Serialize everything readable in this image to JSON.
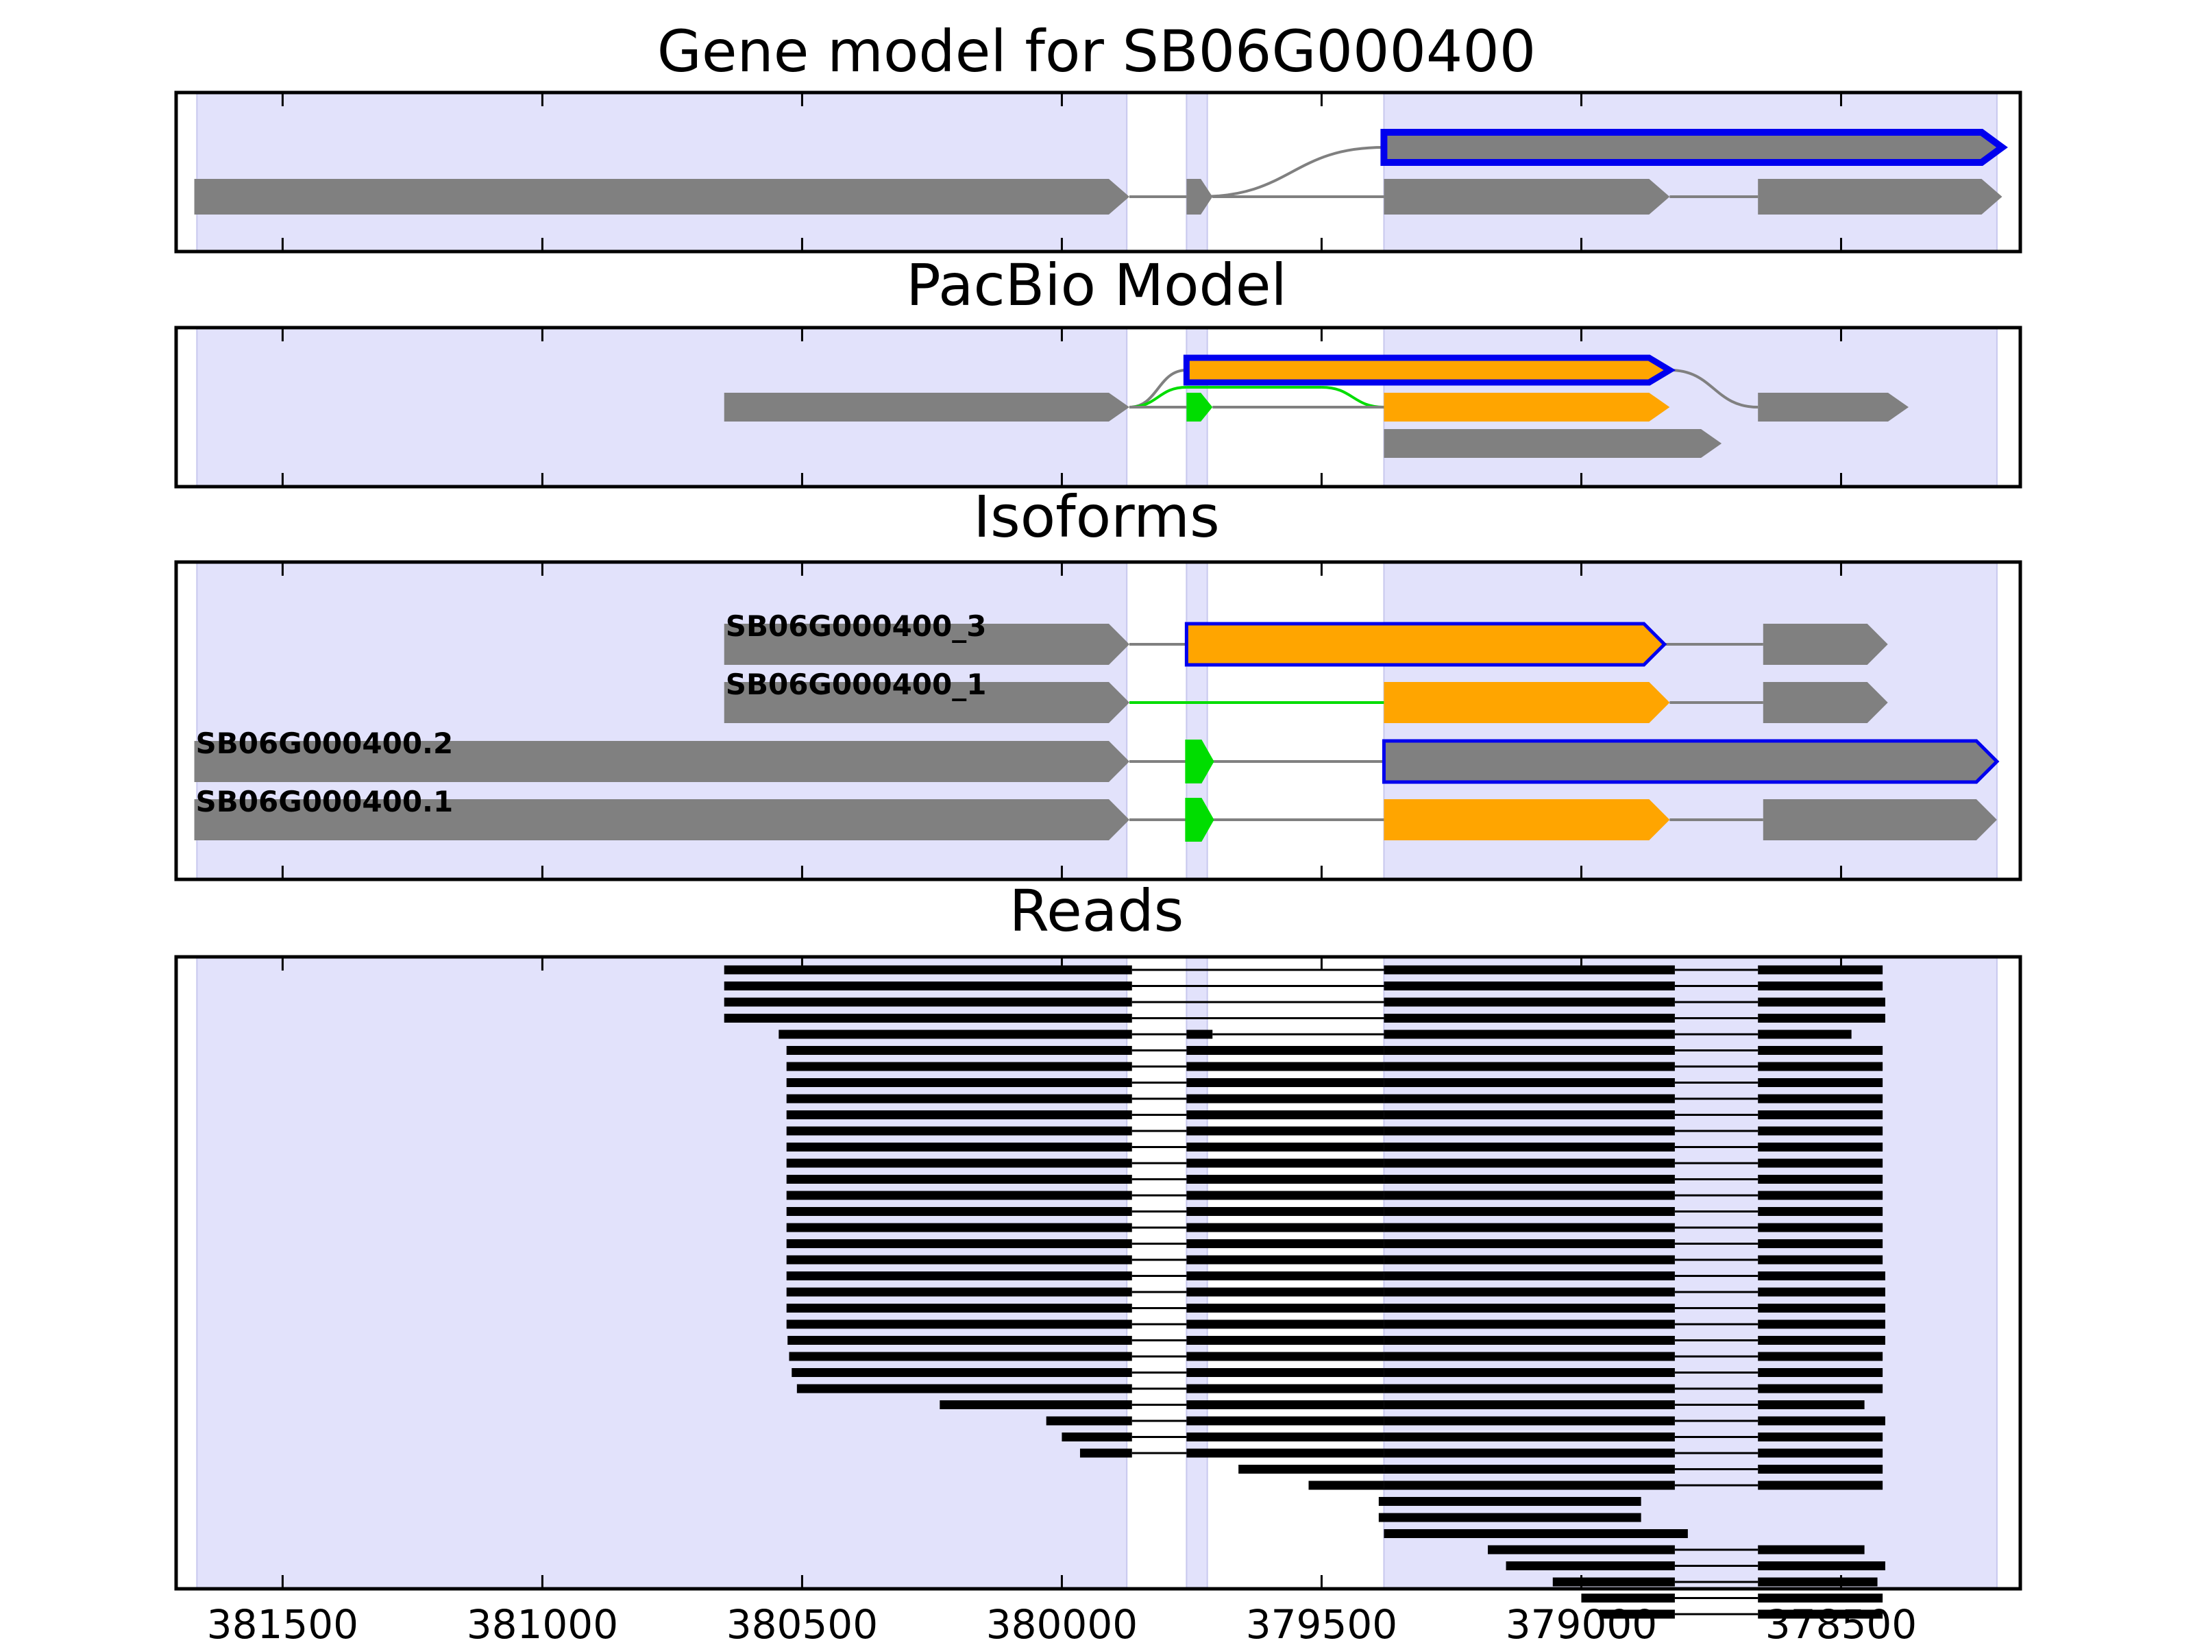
{
  "colors": {
    "background": "#ffffff",
    "exon_shade": "#e2e2fb",
    "exon_shade_edge": "#c8c8ee",
    "exon": "#808080",
    "alt_exon": "#ffa500",
    "novel_exon": "#00dd00",
    "highlight": "#0000ee",
    "intron": "#808080",
    "novel_intron": "#00dd00",
    "read": "#000000",
    "frame": "#000000"
  },
  "chart_data": {
    "type": "gene-model",
    "x_axis": {
      "range": [
        381705,
        378155
      ],
      "reversed": true,
      "ticks": [
        381500,
        381000,
        380500,
        380000,
        379500,
        379000,
        378500
      ],
      "tick_labels": [
        "381500",
        "381000",
        "380500",
        "380000",
        "379500",
        "379000",
        "378500"
      ]
    },
    "shaded_regions": [
      [
        381665,
        379875
      ],
      [
        379760,
        379720
      ],
      [
        379380,
        378200
      ]
    ],
    "panels": [
      {
        "id": "gene_model",
        "title": "Gene model for SB06G000400",
        "rows": 2,
        "tracks": [
          {
            "row": 0.5,
            "exons": [
              [
                379380,
                378190
              ]
            ],
            "color": "exon",
            "outline": "highlight",
            "outline_style": "thick",
            "introns_from_row": 1.5,
            "intron_link": [
              [
                379735,
                379380
              ]
            ]
          },
          {
            "row": 1.5,
            "exons": [
              [
                381670,
                379870
              ],
              [
                379760,
                379710
              ],
              [
                379380,
                378830
              ],
              [
                378660,
                378190
              ]
            ],
            "color": "exon",
            "introns": [
              [
                379870,
                379760
              ],
              [
                379710,
                379380
              ],
              [
                378830,
                378660
              ]
            ]
          }
        ]
      },
      {
        "id": "pacbio_model",
        "title": "PacBio Model",
        "rows": 3,
        "tracks": [
          {
            "row": 0.5,
            "exons": [
              [
                379760,
                378830
              ]
            ],
            "color": "alt_exon",
            "outline": "highlight",
            "outline_style": "thick",
            "curve_in": [
              379870,
              379760
            ],
            "curve_out": [
              378830,
              378660
            ],
            "curve_color": "intron"
          },
          {
            "row": 1.5,
            "exons": [
              [
                380650,
                379870
              ],
              [
                378660,
                378370
              ]
            ],
            "color": "exon",
            "introns": []
          },
          {
            "row": 1.5,
            "exons": [
              [
                379760,
                379710
              ]
            ],
            "color": "novel_exon",
            "introns": [
              [
                379870,
                379760
              ],
              [
                379710,
                379380
              ]
            ]
          },
          {
            "row": 1.5,
            "exons": [
              [
                379380,
                378830
              ]
            ],
            "color": "alt_exon",
            "curve_green": [
              379870,
              379380
            ]
          },
          {
            "row": 2.5,
            "exons": [
              [
                379380,
                378730
              ]
            ],
            "color": "exon",
            "introns": []
          }
        ]
      },
      {
        "id": "isoforms",
        "title": "Isoforms",
        "isoforms": [
          {
            "name": "SB06G000400_3",
            "exons": [
              [
                380650,
                379870
              ],
              [
                379760,
                378840
              ],
              [
                378650,
                378410
              ]
            ],
            "colors": [
              "exon",
              "alt_exon",
              "exon"
            ],
            "outline": [
              null,
              "highlight",
              null
            ],
            "intron_colors": [
              "intron",
              "intron"
            ]
          },
          {
            "name": "SB06G000400_1",
            "exons": [
              [
                380650,
                379870
              ],
              [
                379380,
                378830
              ],
              [
                378650,
                378410
              ]
            ],
            "colors": [
              "exon",
              "alt_exon",
              "exon"
            ],
            "outline": [
              null,
              null,
              null
            ],
            "intron_colors": [
              "novel_intron",
              "intron"
            ]
          },
          {
            "name": "SB06G000400.2",
            "exons": [
              [
                381670,
                379870
              ],
              [
                379760,
                379710
              ],
              [
                379380,
                378200
              ]
            ],
            "colors": [
              "exon",
              "novel_exon",
              "exon"
            ],
            "outline": [
              null,
              null,
              "highlight"
            ],
            "intron_colors": [
              "intron",
              "intron"
            ]
          },
          {
            "name": "SB06G000400.1",
            "exons": [
              [
                381670,
                379870
              ],
              [
                379760,
                379710
              ],
              [
                379380,
                378830
              ],
              [
                378650,
                378200
              ]
            ],
            "colors": [
              "exon",
              "novel_exon",
              "alt_exon",
              "exon"
            ],
            "outline": [
              null,
              null,
              null,
              null
            ],
            "intron_colors": [
              "intron",
              "intron",
              "intron"
            ]
          }
        ]
      },
      {
        "id": "reads",
        "title": "Reads",
        "reads": [
          [
            [
              380650,
              379865
            ],
            [
              379380,
              378820
            ],
            [
              378660,
              378420
            ]
          ],
          [
            [
              380650,
              379865
            ],
            [
              379380,
              378820
            ],
            [
              378660,
              378420
            ]
          ],
          [
            [
              380650,
              379865
            ],
            [
              379380,
              378820
            ],
            [
              378660,
              378415
            ]
          ],
          [
            [
              380650,
              379865
            ],
            [
              379380,
              378820
            ],
            [
              378660,
              378415
            ]
          ],
          [
            [
              380545,
              379865
            ],
            [
              379760,
              379710
            ],
            [
              379380,
              378820
            ],
            [
              378660,
              378480
            ]
          ],
          [
            [
              380530,
              379865
            ],
            [
              379760,
              379380
            ],
            [
              379380,
              378820
            ],
            [
              378660,
              378420
            ]
          ],
          [
            [
              380530,
              379865
            ],
            [
              379760,
              379380
            ],
            [
              379380,
              378820
            ],
            [
              378660,
              378420
            ]
          ],
          [
            [
              380530,
              379865
            ],
            [
              379760,
              379380
            ],
            [
              379380,
              378820
            ],
            [
              378660,
              378420
            ]
          ],
          [
            [
              380530,
              379865
            ],
            [
              379760,
              379380
            ],
            [
              379380,
              378820
            ],
            [
              378660,
              378420
            ]
          ],
          [
            [
              380530,
              379865
            ],
            [
              379760,
              379380
            ],
            [
              379380,
              378820
            ],
            [
              378660,
              378420
            ]
          ],
          [
            [
              380530,
              379865
            ],
            [
              379760,
              379380
            ],
            [
              379380,
              378820
            ],
            [
              378660,
              378420
            ]
          ],
          [
            [
              380530,
              379865
            ],
            [
              379760,
              379380
            ],
            [
              379380,
              378820
            ],
            [
              378660,
              378420
            ]
          ],
          [
            [
              380530,
              379865
            ],
            [
              379760,
              379380
            ],
            [
              379380,
              378820
            ],
            [
              378660,
              378420
            ]
          ],
          [
            [
              380530,
              379865
            ],
            [
              379760,
              379380
            ],
            [
              379380,
              378820
            ],
            [
              378660,
              378420
            ]
          ],
          [
            [
              380530,
              379865
            ],
            [
              379760,
              379380
            ],
            [
              379380,
              378820
            ],
            [
              378660,
              378420
            ]
          ],
          [
            [
              380530,
              379865
            ],
            [
              379760,
              379380
            ],
            [
              379380,
              378820
            ],
            [
              378660,
              378420
            ]
          ],
          [
            [
              380530,
              379865
            ],
            [
              379760,
              379380
            ],
            [
              379380,
              378820
            ],
            [
              378660,
              378420
            ]
          ],
          [
            [
              380530,
              379865
            ],
            [
              379760,
              379380
            ],
            [
              379380,
              378820
            ],
            [
              378660,
              378420
            ]
          ],
          [
            [
              380530,
              379865
            ],
            [
              379760,
              379380
            ],
            [
              379380,
              378820
            ],
            [
              378660,
              378420
            ]
          ],
          [
            [
              380530,
              379865
            ],
            [
              379760,
              379380
            ],
            [
              379380,
              378820
            ],
            [
              378660,
              378415
            ]
          ],
          [
            [
              380530,
              379865
            ],
            [
              379760,
              379380
            ],
            [
              379380,
              378820
            ],
            [
              378660,
              378415
            ]
          ],
          [
            [
              380530,
              379865
            ],
            [
              379760,
              379380
            ],
            [
              379380,
              378820
            ],
            [
              378660,
              378415
            ]
          ],
          [
            [
              380530,
              379865
            ],
            [
              379760,
              379380
            ],
            [
              379380,
              378820
            ],
            [
              378660,
              378415
            ]
          ],
          [
            [
              380528,
              379865
            ],
            [
              379760,
              379380
            ],
            [
              379380,
              378820
            ],
            [
              378660,
              378415
            ]
          ],
          [
            [
              380525,
              379865
            ],
            [
              379760,
              379380
            ],
            [
              379380,
              378820
            ],
            [
              378660,
              378420
            ]
          ],
          [
            [
              380520,
              379865
            ],
            [
              379760,
              379380
            ],
            [
              379380,
              378820
            ],
            [
              378660,
              378420
            ]
          ],
          [
            [
              380510,
              379865
            ],
            [
              379760,
              379380
            ],
            [
              379380,
              378820
            ],
            [
              378660,
              378420
            ]
          ],
          [
            [
              380235,
              379865
            ],
            [
              379760,
              379380
            ],
            [
              379380,
              378820
            ],
            [
              378660,
              378455
            ]
          ],
          [
            [
              380030,
              379865
            ],
            [
              379760,
              379380
            ],
            [
              379380,
              378820
            ],
            [
              378660,
              378415
            ]
          ],
          [
            [
              380000,
              379865
            ],
            [
              379760,
              379380
            ],
            [
              379380,
              378820
            ],
            [
              378660,
              378420
            ]
          ],
          [
            [
              379965,
              379865
            ],
            [
              379760,
              379380
            ],
            [
              379380,
              378820
            ],
            [
              378660,
              378420
            ]
          ],
          [
            [
              379660,
              379380
            ],
            [
              379380,
              378820
            ],
            [
              378660,
              378420
            ]
          ],
          [
            [
              379525,
              379380
            ],
            [
              379380,
              378820
            ],
            [
              378660,
              378420
            ]
          ],
          [
            [
              379390,
              378885
            ]
          ],
          [
            [
              379390,
              378885
            ]
          ],
          [
            [
              379380,
              378795
            ]
          ],
          [
            [
              379180,
              378820
            ],
            [
              378660,
              378455
            ]
          ],
          [
            [
              379145,
              378820
            ],
            [
              378660,
              378415
            ]
          ],
          [
            [
              379055,
              378820
            ],
            [
              378660,
              378430
            ]
          ],
          [
            [
              379000,
              378820
            ],
            [
              378660,
              378420
            ]
          ],
          [
            [
              378965,
              378820
            ],
            [
              378660,
              378420
            ]
          ]
        ]
      }
    ]
  }
}
